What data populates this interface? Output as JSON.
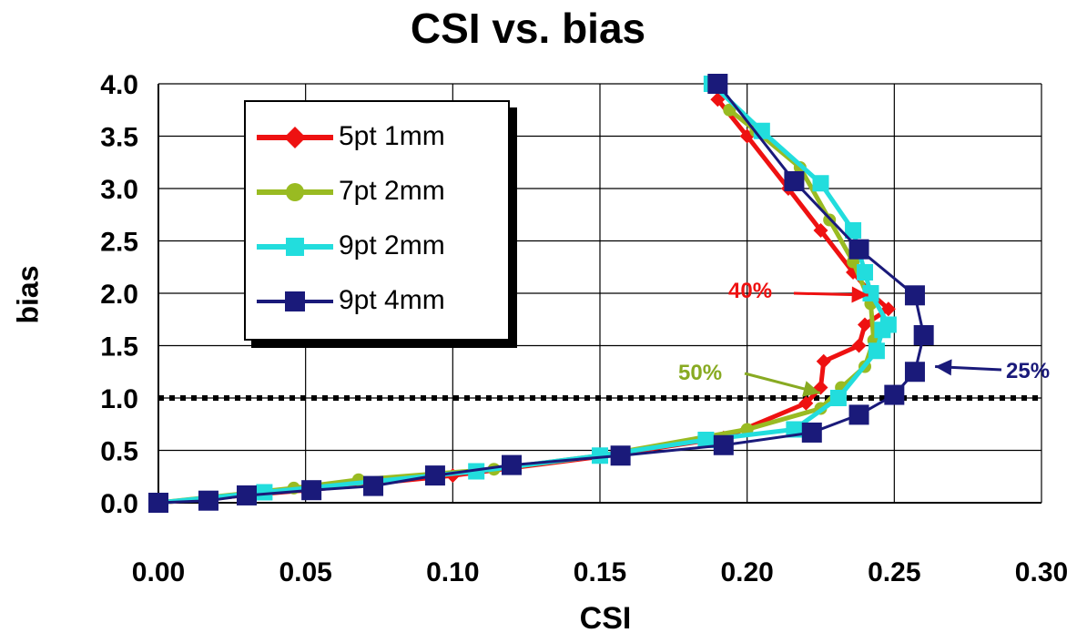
{
  "chart_data": {
    "type": "line",
    "title": "CSI vs. bias",
    "xlabel": "CSI",
    "ylabel": "bias",
    "xlim": [
      0,
      0.3
    ],
    "ylim": [
      0,
      4.0
    ],
    "x_ticks": [
      "0.00",
      "0.05",
      "0.10",
      "0.15",
      "0.20",
      "0.25",
      "0.30"
    ],
    "y_ticks": [
      "0.0",
      "0.5",
      "1.0",
      "1.5",
      "2.0",
      "2.5",
      "3.0",
      "3.5",
      "4.0"
    ],
    "grid": true,
    "reference_line": {
      "y": 1.0,
      "style": "dotted"
    },
    "legend_position": "upper-left",
    "series": [
      {
        "name": "5pt 1mm",
        "color": "#ee1111",
        "marker": "diamond",
        "x": [
          0.0,
          0.05,
          0.1,
          0.15,
          0.192,
          0.22,
          0.225,
          0.226,
          0.238,
          0.24,
          0.248,
          0.242,
          0.236,
          0.225,
          0.214,
          0.2,
          0.19
        ],
        "y": [
          0.0,
          0.12,
          0.26,
          0.44,
          0.62,
          0.95,
          1.1,
          1.35,
          1.5,
          1.7,
          1.85,
          2.0,
          2.2,
          2.6,
          3.0,
          3.5,
          3.85
        ]
      },
      {
        "name": "7pt 2mm",
        "color": "#99bb22",
        "marker": "circle",
        "x": [
          0.0,
          0.046,
          0.068,
          0.114,
          0.15,
          0.2,
          0.225,
          0.232,
          0.24,
          0.243,
          0.242,
          0.236,
          0.228,
          0.218,
          0.203,
          0.194
        ],
        "y": [
          0.0,
          0.14,
          0.22,
          0.32,
          0.45,
          0.7,
          0.9,
          1.1,
          1.3,
          1.55,
          1.9,
          2.3,
          2.7,
          3.2,
          3.55,
          3.75
        ]
      },
      {
        "name": "9pt 2mm",
        "color": "#22dddd",
        "marker": "square",
        "x": [
          0.0,
          0.036,
          0.108,
          0.15,
          0.186,
          0.216,
          0.231,
          0.244,
          0.246,
          0.248,
          0.242,
          0.24,
          0.236,
          0.225,
          0.205,
          0.188
        ],
        "y": [
          0.0,
          0.1,
          0.3,
          0.45,
          0.6,
          0.7,
          1.0,
          1.45,
          1.65,
          1.7,
          2.0,
          2.2,
          2.6,
          3.05,
          3.55,
          4.0
        ]
      },
      {
        "name": "9pt 4mm",
        "color": "#1a1a7a",
        "marker": "square",
        "x": [
          0.0,
          0.017,
          0.03,
          0.052,
          0.073,
          0.094,
          0.12,
          0.157,
          0.192,
          0.222,
          0.238,
          0.25,
          0.257,
          0.26,
          0.257,
          0.238,
          0.216,
          0.19
        ],
        "y": [
          0.0,
          0.02,
          0.07,
          0.12,
          0.16,
          0.26,
          0.36,
          0.45,
          0.55,
          0.67,
          0.84,
          1.03,
          1.25,
          1.6,
          1.98,
          2.42,
          3.07,
          4.0
        ]
      }
    ],
    "annotations": [
      {
        "text": "40%",
        "color": "#ee1111",
        "target": {
          "x": 0.243,
          "y": 2.0
        }
      },
      {
        "text": "50%",
        "color": "#88aa22",
        "target": {
          "x": 0.226,
          "y": 1.1
        }
      },
      {
        "text": "25%",
        "color": "#1a1a7a",
        "target": {
          "x": 0.262,
          "y": 1.3
        }
      }
    ]
  }
}
